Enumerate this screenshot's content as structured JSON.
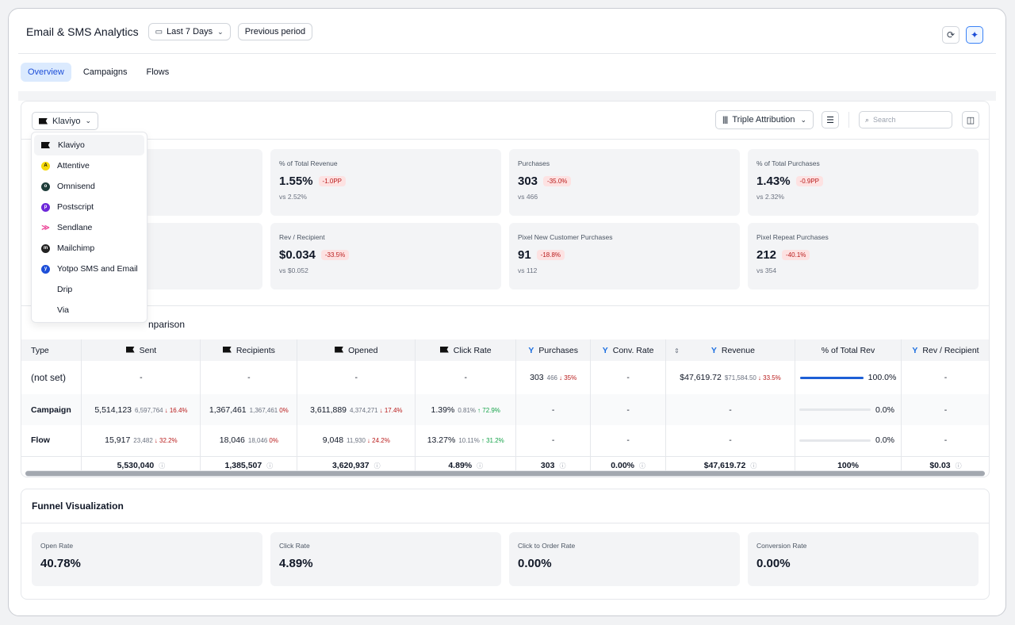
{
  "header": {
    "title": "Email & SMS Analytics",
    "date_range": "Last 7 Days",
    "compare": "Previous period"
  },
  "tabs": [
    "Overview",
    "Campaigns",
    "Flows"
  ],
  "toolbar": {
    "provider": "Klaviyo",
    "attribution": "Triple Attribution",
    "search_placeholder": "Search"
  },
  "dropdown": {
    "items": [
      {
        "label": "Klaviyo",
        "icon": "klaviyo-icon",
        "color": "#111111"
      },
      {
        "label": "Attentive",
        "icon": "attentive-icon",
        "color": "#f5d90a"
      },
      {
        "label": "Omnisend",
        "icon": "omnisend-icon",
        "color": "#1f3d3a"
      },
      {
        "label": "Postscript",
        "icon": "postscript-icon",
        "color": "#6d28d9"
      },
      {
        "label": "Sendlane",
        "icon": "sendlane-icon",
        "color": "#ec4899"
      },
      {
        "label": "Mailchimp",
        "icon": "mailchimp-icon",
        "color": "#222222"
      },
      {
        "label": "Yotpo SMS and Email",
        "icon": "yotpo-icon",
        "color": "#1d4ed8"
      },
      {
        "label": "Drip",
        "icon": "",
        "color": ""
      },
      {
        "label": "Via",
        "icon": "",
        "color": ""
      }
    ]
  },
  "metrics": [
    {
      "label": "% of Total Revenue",
      "value": "1.55%",
      "change": "-1.0PP",
      "vs": "vs 2.52%"
    },
    {
      "label": "Purchases",
      "value": "303",
      "change": "-35.0%",
      "vs": "vs 466"
    },
    {
      "label": "% of Total Purchases",
      "value": "1.43%",
      "change": "-0.9PP",
      "vs": "vs 2.32%"
    },
    {
      "label": "Rev / Recipient",
      "value": "$0.034",
      "change": "-33.5%",
      "vs": "vs $0.052"
    },
    {
      "label": "Pixel New Customer Purchases",
      "value": "91",
      "change": "-18.8%",
      "vs": "vs 112"
    },
    {
      "label": "Pixel Repeat Purchases",
      "value": "212",
      "change": "-40.1%",
      "vs": "vs 354"
    }
  ],
  "comparison_title": "nparison",
  "table": {
    "headers": {
      "type": "Type",
      "sent": "Sent",
      "recipients": "Recipients",
      "opened": "Opened",
      "click_rate": "Click Rate",
      "purchases": "Purchases",
      "conv_rate": "Conv. Rate",
      "revenue": "Revenue",
      "pct_rev": "% of Total Rev",
      "rev_recipient": "Rev / Recipient"
    },
    "rows": [
      {
        "type": "(not set)",
        "sent": "-",
        "recipients": "-",
        "opened": "-",
        "click_rate": "-",
        "purchases": "303",
        "purchases_prev": "466",
        "purchases_delta": "↓ 35%",
        "conv_rate": "-",
        "revenue": "$47,619.72",
        "revenue_prev": "$71,584.50",
        "revenue_delta": "↓ 33.5%",
        "pct_rev": "100.0%",
        "pct_rev_fraction": 1.0,
        "rev_recipient": "-"
      },
      {
        "type": "Campaign",
        "sent": "5,514,123",
        "sent_prev": "6,597,764",
        "sent_delta": "↓ 16.4%",
        "recipients": "1,367,461",
        "recipients_prev": "1,367,461",
        "recipients_delta": "0%",
        "opened": "3,611,889",
        "opened_prev": "4,374,271",
        "opened_delta": "↓ 17.4%",
        "click_rate": "1.39%",
        "click_rate_prev": "0.81%",
        "click_rate_delta": "↑ 72.9%",
        "purchases": "-",
        "conv_rate": "-",
        "revenue": "-",
        "pct_rev": "0.0%",
        "pct_rev_fraction": 0.0,
        "rev_recipient": "-"
      },
      {
        "type": "Flow",
        "sent": "15,917",
        "sent_prev": "23,482",
        "sent_delta": "↓ 32.2%",
        "recipients": "18,046",
        "recipients_prev": "18,046",
        "recipients_delta": "0%",
        "opened": "9,048",
        "opened_prev": "11,930",
        "opened_delta": "↓ 24.2%",
        "click_rate": "13.27%",
        "click_rate_prev": "10.11%",
        "click_rate_delta": "↑ 31.2%",
        "purchases": "-",
        "conv_rate": "-",
        "revenue": "-",
        "pct_rev": "0.0%",
        "pct_rev_fraction": 0.0,
        "rev_recipient": "-"
      }
    ],
    "totals": {
      "sent": "5,530,040",
      "recipients": "1,385,507",
      "opened": "3,620,937",
      "click_rate": "4.89%",
      "purchases": "303",
      "conv_rate": "0.00%",
      "revenue": "$47,619.72",
      "pct_rev": "100%",
      "rev_recipient": "$0.03"
    }
  },
  "funnel": {
    "title": "Funnel Visualization",
    "cards": [
      {
        "label": "Open Rate",
        "value": "40.78%"
      },
      {
        "label": "Click Rate",
        "value": "4.89%"
      },
      {
        "label": "Click to Order Rate",
        "value": "0.00%"
      },
      {
        "label": "Conversion Rate",
        "value": "0.00%"
      }
    ]
  }
}
